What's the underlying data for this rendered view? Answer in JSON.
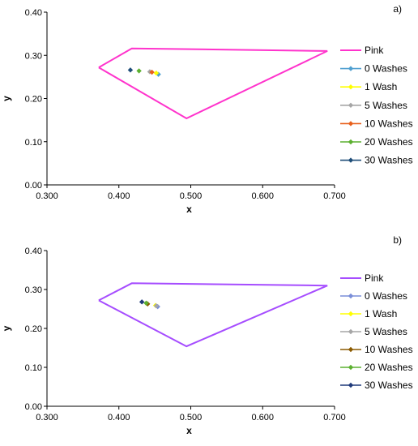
{
  "chart_data": [
    {
      "type": "scatter",
      "panel_label": "a)",
      "xlabel": "x",
      "ylabel": "y",
      "xlim": [
        0.3,
        0.7
      ],
      "ylim": [
        0.0,
        0.4
      ],
      "xticks": [
        "0.300",
        "0.400",
        "0.500",
        "0.600",
        "0.700"
      ],
      "yticks": [
        "0.00",
        "0.10",
        "0.20",
        "0.30",
        "0.40"
      ],
      "grid": false,
      "legend_position": "right",
      "series": [
        {
          "name": "Pink",
          "kind": "polygon",
          "color": "#ff33cc",
          "points": [
            [
              0.372,
              0.272
            ],
            [
              0.418,
              0.316
            ],
            [
              0.69,
              0.31
            ],
            [
              0.494,
              0.154
            ],
            [
              0.372,
              0.272
            ]
          ]
        },
        {
          "name": "0 Washes",
          "color": "#4f9fd0",
          "points": [
            [
              0.455,
              0.256
            ]
          ]
        },
        {
          "name": "1 Wash",
          "color": "#ffff00",
          "points": [
            [
              0.452,
              0.259
            ]
          ]
        },
        {
          "name": "5 Washes",
          "color": "#a6a6a6",
          "points": [
            [
              0.443,
              0.262
            ]
          ]
        },
        {
          "name": "10 Washes",
          "color": "#e8601c",
          "points": [
            [
              0.446,
              0.261
            ]
          ]
        },
        {
          "name": "20 Washes",
          "color": "#5cb030",
          "points": [
            [
              0.428,
              0.264
            ]
          ]
        },
        {
          "name": "30 Washes",
          "color": "#1f4e79",
          "points": [
            [
              0.416,
              0.266
            ]
          ]
        }
      ]
    },
    {
      "type": "scatter",
      "panel_label": "b)",
      "xlabel": "x",
      "ylabel": "y",
      "xlim": [
        0.3,
        0.7
      ],
      "ylim": [
        0.0,
        0.4
      ],
      "xticks": [
        "0.300",
        "0.400",
        "0.500",
        "0.600",
        "0.700"
      ],
      "yticks": [
        "0.00",
        "0.10",
        "0.20",
        "0.30",
        "0.40"
      ],
      "grid": false,
      "legend_position": "right",
      "series": [
        {
          "name": "Pink",
          "kind": "polygon",
          "color": "#a64dff",
          "points": [
            [
              0.372,
              0.272
            ],
            [
              0.418,
              0.316
            ],
            [
              0.69,
              0.31
            ],
            [
              0.494,
              0.154
            ],
            [
              0.372,
              0.272
            ]
          ]
        },
        {
          "name": "0 Washes",
          "color": "#7a8ed8",
          "points": [
            [
              0.454,
              0.256
            ]
          ]
        },
        {
          "name": "1 Wash",
          "color": "#ffff00",
          "points": [
            [
              0.451,
              0.259
            ]
          ]
        },
        {
          "name": "5 Washes",
          "color": "#a6a6a6",
          "points": [
            [
              0.452,
              0.258
            ]
          ]
        },
        {
          "name": "10 Washes",
          "color": "#8b5a00",
          "points": [
            [
              0.44,
              0.263
            ]
          ]
        },
        {
          "name": "20 Washes",
          "color": "#5cb030",
          "points": [
            [
              0.438,
              0.265
            ]
          ]
        },
        {
          "name": "30 Washes",
          "color": "#1f3a7a",
          "points": [
            [
              0.432,
              0.268
            ]
          ]
        }
      ]
    }
  ]
}
